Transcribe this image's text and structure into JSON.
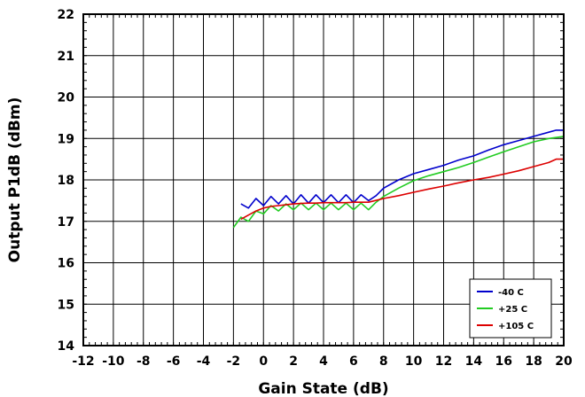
{
  "chart_data": {
    "type": "line",
    "title": "",
    "xlabel": "Gain State (dB)",
    "ylabel": "Output P1dB (dBm)",
    "xlim": [
      -12,
      20
    ],
    "ylim": [
      14,
      22
    ],
    "xticks": [
      -12,
      -10,
      -8,
      -6,
      -4,
      -2,
      0,
      2,
      4,
      6,
      8,
      10,
      12,
      14,
      16,
      18,
      20
    ],
    "yticks": [
      14,
      15,
      16,
      17,
      18,
      19,
      20,
      21,
      22
    ],
    "grid": true,
    "legend_position": "bottom-right",
    "series": [
      {
        "name": "-40 C",
        "color": "#0000cc",
        "x": [
          -1.5,
          -1.0,
          -0.5,
          0.0,
          0.5,
          1.0,
          1.5,
          2.0,
          2.5,
          3.0,
          3.5,
          4.0,
          4.5,
          5.0,
          5.5,
          6.0,
          6.5,
          7.0,
          7.5,
          8.0,
          9.0,
          10.0,
          11.0,
          12.0,
          13.0,
          14.0,
          15.0,
          16.0,
          17.0,
          18.0,
          19.0,
          19.5,
          20.0
        ],
        "y": [
          17.42,
          17.32,
          17.55,
          17.38,
          17.6,
          17.42,
          17.62,
          17.42,
          17.64,
          17.44,
          17.64,
          17.45,
          17.64,
          17.45,
          17.64,
          17.45,
          17.64,
          17.5,
          17.62,
          17.8,
          18.0,
          18.15,
          18.25,
          18.35,
          18.48,
          18.58,
          18.72,
          18.85,
          18.95,
          19.05,
          19.15,
          19.2,
          19.2
        ]
      },
      {
        "name": "+25 C",
        "color": "#22cc22",
        "x": [
          -2.0,
          -1.5,
          -1.0,
          -0.5,
          0.0,
          0.5,
          1.0,
          1.5,
          2.0,
          2.5,
          3.0,
          3.5,
          4.0,
          4.5,
          5.0,
          5.5,
          6.0,
          6.5,
          7.0,
          7.5,
          8.0,
          9.0,
          10.0,
          11.0,
          12.0,
          13.0,
          14.0,
          15.0,
          16.0,
          17.0,
          18.0,
          19.0,
          20.0
        ],
        "y": [
          16.85,
          17.1,
          17.0,
          17.25,
          17.18,
          17.38,
          17.25,
          17.42,
          17.28,
          17.44,
          17.28,
          17.44,
          17.28,
          17.44,
          17.28,
          17.44,
          17.28,
          17.44,
          17.28,
          17.46,
          17.6,
          17.8,
          17.98,
          18.1,
          18.2,
          18.3,
          18.42,
          18.55,
          18.68,
          18.8,
          18.92,
          19.0,
          19.05
        ]
      },
      {
        "name": "+105 C",
        "color": "#dd0000",
        "x": [
          -1.5,
          -1.0,
          -0.5,
          0.0,
          0.5,
          1.0,
          1.5,
          2.0,
          2.5,
          3.0,
          3.5,
          4.0,
          4.5,
          5.0,
          5.5,
          6.0,
          6.5,
          7.0,
          8.0,
          9.0,
          10.0,
          11.0,
          12.0,
          13.0,
          14.0,
          15.0,
          16.0,
          17.0,
          18.0,
          19.0,
          19.5,
          20.0
        ],
        "y": [
          17.05,
          17.15,
          17.25,
          17.32,
          17.36,
          17.38,
          17.4,
          17.42,
          17.43,
          17.44,
          17.44,
          17.45,
          17.45,
          17.45,
          17.45,
          17.46,
          17.46,
          17.46,
          17.55,
          17.62,
          17.7,
          17.78,
          17.85,
          17.93,
          18.0,
          18.06,
          18.14,
          18.22,
          18.32,
          18.42,
          18.5,
          18.5
        ]
      }
    ]
  }
}
